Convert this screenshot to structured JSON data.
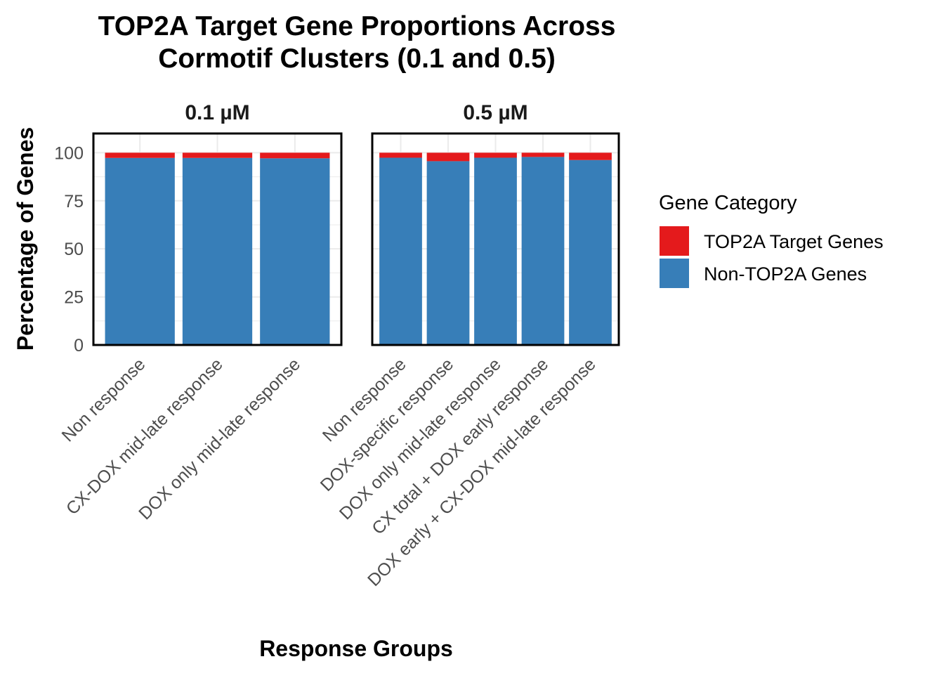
{
  "chart_data": {
    "type": "bar",
    "stacked": true,
    "title": [
      "TOP2A Target Gene Proportions Across",
      "Cormotif Clusters (0.1 and 0.5)"
    ],
    "xlabel": "Response Groups",
    "ylabel": "Percentage of Genes",
    "ylim": [
      0,
      110
    ],
    "yticks": [
      0,
      25,
      50,
      75,
      100
    ],
    "grid": true,
    "legend": {
      "title": "Gene Category",
      "position": "right",
      "entries": [
        {
          "name": "TOP2A Target Genes",
          "color": "#E41A1C"
        },
        {
          "name": "Non-TOP2A Genes",
          "color": "#377EB8"
        }
      ]
    },
    "facets": [
      {
        "label": "0.1 µM",
        "categories": [
          "Non response",
          "CX-DOX mid-late response",
          "DOX only mid-late response"
        ],
        "series": [
          {
            "name": "Non-TOP2A Genes",
            "values": [
              97.3,
              97.3,
              97.1
            ]
          },
          {
            "name": "TOP2A Target Genes",
            "values": [
              2.7,
              2.7,
              2.9
            ]
          }
        ]
      },
      {
        "label": "0.5 µM",
        "categories": [
          "Non response",
          "DOX-specific response",
          "DOX only mid-late response",
          "CX total + DOX early response",
          "DOX early + CX-DOX mid-late response"
        ],
        "series": [
          {
            "name": "Non-TOP2A Genes",
            "values": [
              97.4,
              95.6,
              97.4,
              97.8,
              96.2
            ]
          },
          {
            "name": "TOP2A Target Genes",
            "values": [
              2.6,
              4.4,
              2.6,
              2.2,
              3.8
            ]
          }
        ]
      }
    ]
  }
}
